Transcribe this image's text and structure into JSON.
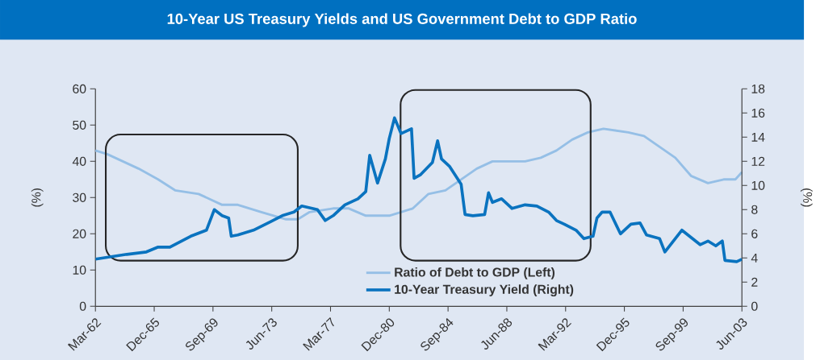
{
  "chart_data": {
    "type": "line",
    "title": "10-Year US Treasury Yields and US Government Debt to GDP Ratio",
    "ylabel": "(%)",
    "y2label": "(%)",
    "xlim": [
      "1962-03",
      "2003-06"
    ],
    "xticks": [
      {
        "value": "1962-03",
        "label": "Mar-62"
      },
      {
        "value": "1965-12",
        "label": "Dec-65"
      },
      {
        "value": "1969-09",
        "label": "Sep-69"
      },
      {
        "value": "1973-06",
        "label": "Jun-73"
      },
      {
        "value": "1977-03",
        "label": "Mar-77"
      },
      {
        "value": "1980-12",
        "label": "Dec-80"
      },
      {
        "value": "1984-09",
        "label": "Sep-84"
      },
      {
        "value": "1988-06",
        "label": "Jun-88"
      },
      {
        "value": "1992-03",
        "label": "Mar-92"
      },
      {
        "value": "1995-12",
        "label": "Dec-95"
      },
      {
        "value": "1999-09",
        "label": "Sep-99"
      },
      {
        "value": "2003-06",
        "label": "Jun-03"
      }
    ],
    "ylim": [
      0,
      60
    ],
    "yticks": [
      0,
      10,
      20,
      30,
      40,
      50,
      60
    ],
    "y2lim": [
      0,
      18
    ],
    "y2ticks": [
      0,
      2,
      4,
      6,
      8,
      10,
      12,
      14,
      16,
      18
    ],
    "legend": "bottom",
    "series": [
      {
        "name": "Ratio of Debt to GDP (Left)",
        "color": "#95bfe6",
        "x": [
          "1962-03",
          "1962-12",
          "1964-12",
          "1966-03",
          "1967-04",
          "1968-10",
          "1970-04",
          "1971-04",
          "1972-10",
          "1974-05",
          "1975-02",
          "1975-11",
          "1977-05",
          "1978-05",
          "1979-06",
          "1980-12",
          "1981-09",
          "1982-06",
          "1983-06",
          "1984-07",
          "1985-07",
          "1986-07",
          "1987-07",
          "1988-07",
          "1989-08",
          "1990-08",
          "1991-08",
          "1992-08",
          "1993-08",
          "1994-08",
          "1996-03",
          "1997-03",
          "1998-03",
          "1999-03",
          "2000-03",
          "2001-04",
          "2002-04",
          "2003-01",
          "2003-06"
        ],
        "values": [
          43,
          42,
          38,
          35,
          32,
          31,
          28,
          28,
          26,
          24,
          24,
          26,
          27,
          27,
          25,
          25,
          26,
          27,
          31,
          32,
          35,
          38,
          40,
          40,
          40,
          41,
          43,
          46,
          48,
          49,
          48,
          47,
          44,
          41,
          36,
          34,
          35,
          35,
          37
        ]
      },
      {
        "name": "10-Year Treasury Yield (Right)",
        "color": "#0a73bf",
        "axis": "y2",
        "x": [
          "1962-03",
          "1964-03",
          "1965-06",
          "1966-03",
          "1966-12",
          "1968-04",
          "1969-04",
          "1969-10",
          "1970-04",
          "1970-09",
          "1970-11",
          "1971-04",
          "1972-04",
          "1973-05",
          "1974-02",
          "1974-11",
          "1975-05",
          "1976-05",
          "1976-11",
          "1977-05",
          "1978-02",
          "1978-12",
          "1979-06",
          "1979-09",
          "1980-03",
          "1980-09",
          "1980-12",
          "1981-04",
          "1981-09",
          "1982-05",
          "1982-07",
          "1982-12",
          "1983-09",
          "1984-01",
          "1984-04",
          "1984-10",
          "1985-07",
          "1985-10",
          "1986-04",
          "1987-01",
          "1987-04",
          "1987-07",
          "1988-02",
          "1988-10",
          "1989-08",
          "1990-05",
          "1991-02",
          "1991-08",
          "1992-02",
          "1992-11",
          "1993-05",
          "1993-12",
          "1994-03",
          "1994-07",
          "1995-01",
          "1995-09",
          "1996-05",
          "1996-12",
          "1997-05",
          "1998-03",
          "1998-07",
          "1999-08",
          "2000-10",
          "2001-04",
          "2001-10",
          "2002-03",
          "2002-05",
          "2003-02",
          "2003-06"
        ],
        "values": [
          3.9,
          4.3,
          4.5,
          4.9,
          4.9,
          5.8,
          6.3,
          8.0,
          7.5,
          7.3,
          5.8,
          5.9,
          6.3,
          7.0,
          7.5,
          7.8,
          8.3,
          8.0,
          7.1,
          7.5,
          8.4,
          8.9,
          9.5,
          12.5,
          10.2,
          12.2,
          13.9,
          15.6,
          14.3,
          14.7,
          10.6,
          10.9,
          11.9,
          13.7,
          12.2,
          11.6,
          10.1,
          7.6,
          7.5,
          7.6,
          9.4,
          8.6,
          8.9,
          8.1,
          8.4,
          8.3,
          7.8,
          7.1,
          6.8,
          6.3,
          5.6,
          5.8,
          7.3,
          7.8,
          7.8,
          6.0,
          6.8,
          6.9,
          5.9,
          5.6,
          4.5,
          6.3,
          5.1,
          5.4,
          5.0,
          5.4,
          3.8,
          3.7,
          3.9
        ]
      }
    ]
  }
}
